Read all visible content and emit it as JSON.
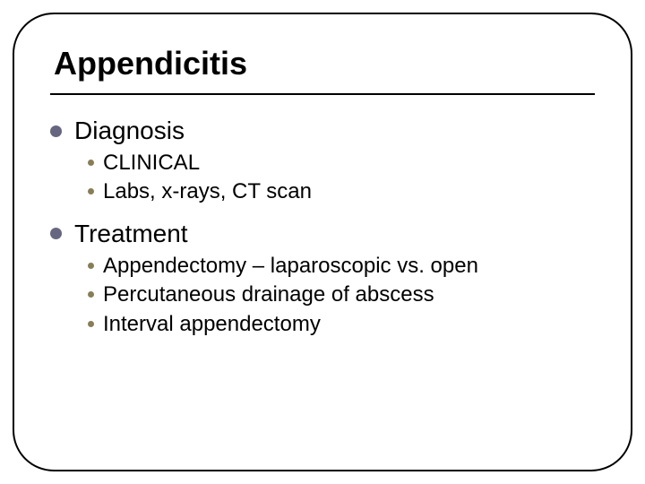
{
  "slide": {
    "title": "Appendicitis",
    "title_fontsize": 36,
    "title_bold": true,
    "title_color": "#000000",
    "frame_border_color": "#000000",
    "frame_border_width": 2,
    "frame_border_radius": 46,
    "divider_color": "#000000",
    "divider_width": 2,
    "background_color": "#ffffff",
    "l1_bullet_color": "#666680",
    "l1_bullet_diameter": 13,
    "l1_fontsize": 28,
    "l2_bullet_color": "#877e57",
    "l2_bullet_diameter": 7,
    "l2_fontsize": 24,
    "sections": [
      {
        "heading": "Diagnosis",
        "items": [
          "CLINICAL",
          "Labs, x-rays, CT scan"
        ]
      },
      {
        "heading": "Treatment",
        "items": [
          "Appendectomy – laparoscopic vs. open",
          "Percutaneous drainage of abscess",
          "Interval appendectomy"
        ]
      }
    ]
  }
}
